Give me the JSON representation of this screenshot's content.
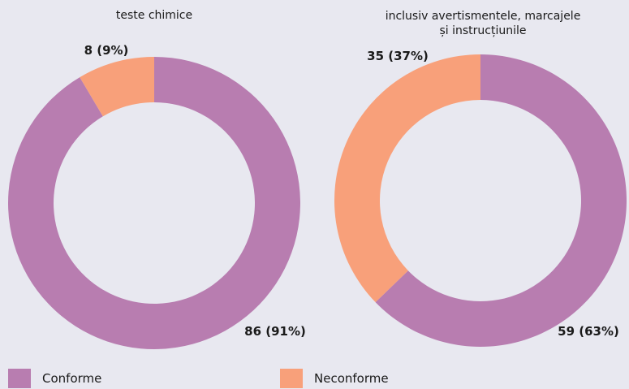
{
  "chart_data": [
    {
      "type": "pie",
      "subtitle": "teste chimice",
      "slices": [
        {
          "name": "Conforme",
          "value": 86,
          "label": "86 (91%)"
        },
        {
          "name": "Neconforme",
          "value": 8,
          "label": "8 (9%)"
        }
      ]
    },
    {
      "type": "pie",
      "subtitle": [
        "inclusiv avertismentele, marcajele",
        "și instrucțiunile"
      ],
      "slices": [
        {
          "name": "Conforme",
          "value": 59,
          "label": "59 (63%)"
        },
        {
          "name": "Neconforme",
          "value": 35,
          "label": "35 (37%)"
        }
      ]
    }
  ],
  "legend": [
    {
      "label": "Conforme",
      "color": "#b87db0"
    },
    {
      "label": "Neconforme",
      "color": "#f8a07a"
    }
  ]
}
